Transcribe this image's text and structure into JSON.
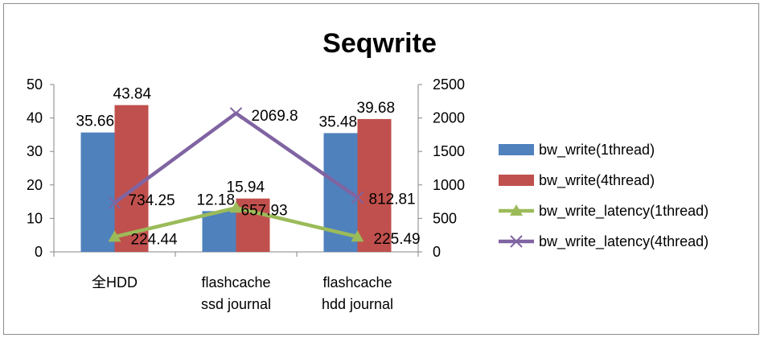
{
  "chart_data": {
    "type": "bar",
    "title": "Seqwrite",
    "categories": [
      [
        "全HDD"
      ],
      [
        "flashcache",
        "ssd journal"
      ],
      [
        "flashcache",
        "hdd journal"
      ]
    ],
    "y_left": {
      "min": 0,
      "max": 50,
      "step": 10,
      "ticks": [
        "0",
        "10",
        "20",
        "30",
        "40",
        "50"
      ]
    },
    "y_right": {
      "min": 0,
      "max": 2500,
      "step": 500,
      "ticks": [
        "0",
        "500",
        "1000",
        "1500",
        "2000",
        "2500"
      ]
    },
    "series": [
      {
        "name": "bw_write(1thread)",
        "kind": "bar",
        "axis": "left",
        "color": "#4f81bd",
        "values": [
          35.66,
          12.18,
          35.48
        ],
        "labels": [
          "35.66",
          "12.18",
          "35.48"
        ]
      },
      {
        "name": "bw_write(4thread)",
        "kind": "bar",
        "axis": "left",
        "color": "#c0504d",
        "values": [
          43.84,
          15.94,
          39.68
        ],
        "labels": [
          "43.84",
          "15.94",
          "39.68"
        ]
      },
      {
        "name": "bw_write_latency(1thread)",
        "kind": "line",
        "axis": "right",
        "color": "#9bbb59",
        "marker": "triangle",
        "values": [
          224.44,
          657.93,
          225.49
        ],
        "labels": [
          "224.44",
          "657.93",
          "225.49"
        ]
      },
      {
        "name": "bw_write_latency(4thread)",
        "kind": "line",
        "axis": "right",
        "color": "#8064a2",
        "marker": "x",
        "values": [
          734.25,
          2069.8,
          812.81
        ],
        "labels": [
          "734.25",
          "2069.8",
          "812.81"
        ]
      }
    ],
    "grid": false,
    "legend": "right"
  }
}
